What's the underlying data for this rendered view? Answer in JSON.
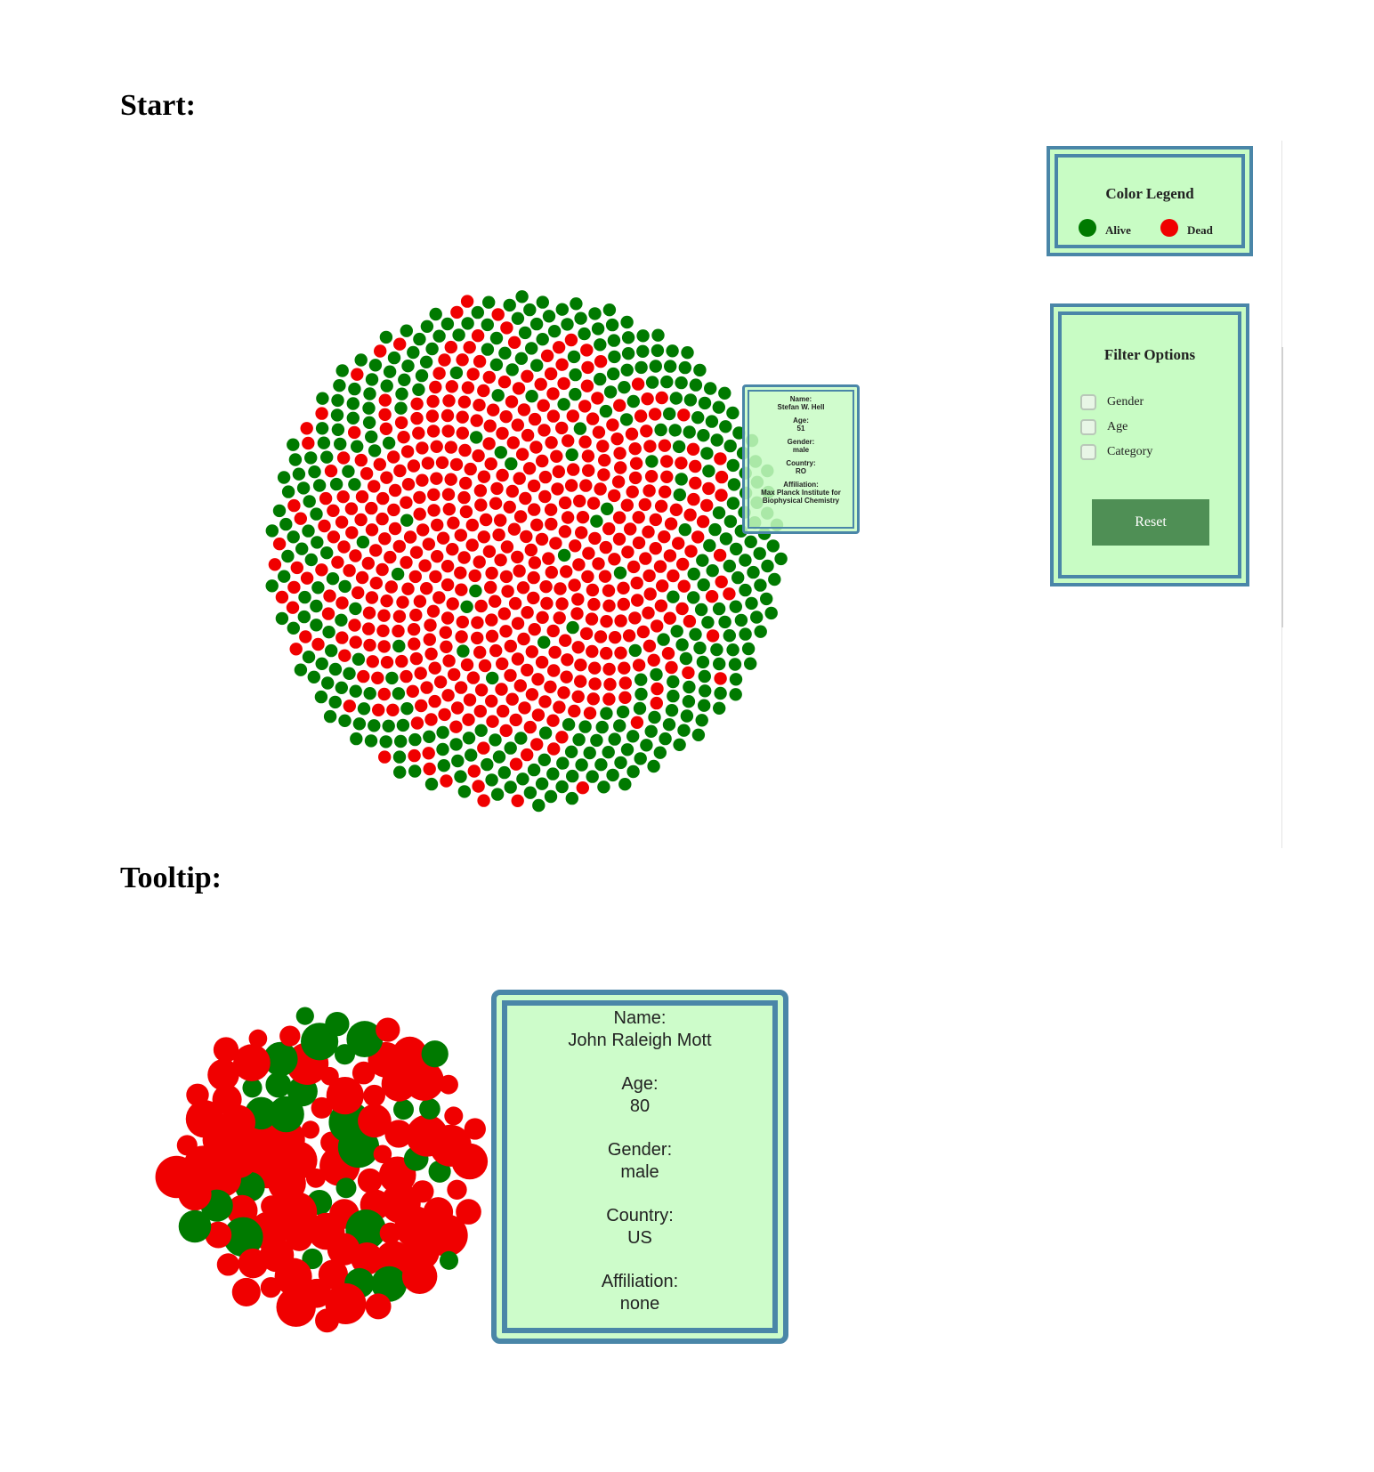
{
  "headings": {
    "start": "Start:",
    "tooltip": "Tooltip:"
  },
  "colors": {
    "alive": "#007a00",
    "dead": "#f00000",
    "panel_bg": "#c8fcc4",
    "panel_border": "#4a86a8",
    "reset_bg": "#4f8f55"
  },
  "legend": {
    "title": "Color Legend",
    "items": [
      {
        "label": "Alive",
        "color": "#007a00"
      },
      {
        "label": "Dead",
        "color": "#f00000"
      }
    ]
  },
  "filters": {
    "title": "Filter Options",
    "options": [
      {
        "label": "Gender",
        "checked": false
      },
      {
        "label": "Age",
        "checked": false
      },
      {
        "label": "Category",
        "checked": false
      }
    ],
    "reset_label": "Reset"
  },
  "tooltip_small": {
    "name_label": "Name:",
    "name": "Stefan W. Hell",
    "age_label": "Age:",
    "age": "51",
    "gender_label": "Gender:",
    "gender": "male",
    "country_label": "Country:",
    "country": "RO",
    "affiliation_label": "Affiliation:",
    "affiliation": "Max Planck Institute for Biophysical Chemistry"
  },
  "tooltip_large": {
    "name_label": "Name:",
    "name": "John Raleigh Mott",
    "age_label": "Age:",
    "age": "80",
    "gender_label": "Gender:",
    "gender": "male",
    "country_label": "Country:",
    "country": "US",
    "affiliation_label": "Affiliation:",
    "affiliation": "none"
  }
}
